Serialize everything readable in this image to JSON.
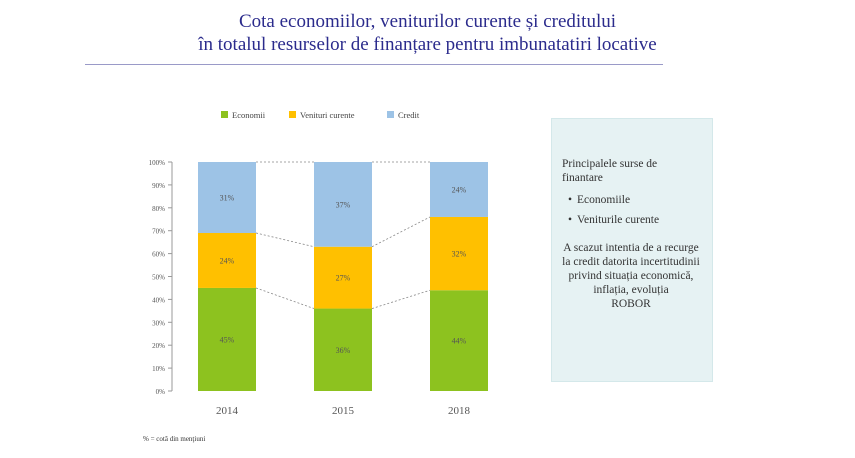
{
  "title": {
    "line1": "Cota economiilor, veniturilor curente și creditului",
    "line2": "în totalul resurselor de finanțare pentru imbunatatiri locative"
  },
  "chart_data": {
    "type": "bar",
    "stacked": true,
    "categories": [
      "2014",
      "2015",
      "2018"
    ],
    "series": [
      {
        "name": "Economii",
        "values": [
          45,
          36,
          44
        ],
        "labels": [
          "45%",
          "36%",
          "44%"
        ],
        "color": "#8dc21f"
      },
      {
        "name": "Venituri curente",
        "values": [
          24,
          27,
          32
        ],
        "labels": [
          "24%",
          "27%",
          "32%"
        ],
        "color": "#ffc000"
      },
      {
        "name": "Credit",
        "values": [
          31,
          37,
          24
        ],
        "labels": [
          "31%",
          "37%",
          "24%"
        ],
        "color": "#9dc3e6"
      }
    ],
    "yticks": [
      "0%",
      "10%",
      "20%",
      "30%",
      "40%",
      "50%",
      "60%",
      "70%",
      "80%",
      "90%",
      "100%"
    ],
    "ylim": [
      0,
      100
    ],
    "legend_position": "top",
    "connector_lines": "dashed",
    "grid": false
  },
  "side_panel": {
    "heading": "Principalele surse de finantare",
    "items": [
      "Economiile",
      "Veniturile curente"
    ],
    "note_line1": "A scazut intentia de a recurge la credit datorita incertitudinii privind",
    "note_line2": "situația economică, inflația, evoluția",
    "note_line3": "ROBOR"
  },
  "footnote": "% = cotă din menţiuni"
}
